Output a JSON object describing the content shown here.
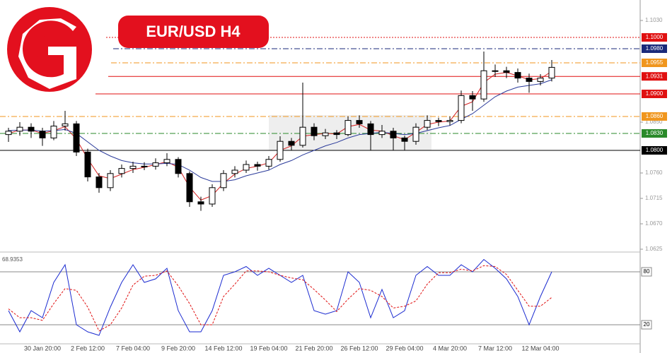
{
  "chart_data": [
    {
      "type": "candlestick",
      "title": "EUR/USD H4",
      "categories": [
        null,
        null,
        null,
        "30 Jan 20:00",
        null,
        null,
        null,
        "2 Feb 12:00",
        null,
        null,
        null,
        "7 Feb 04:00",
        null,
        null,
        null,
        "9 Feb 20:00",
        null,
        null,
        null,
        "14 Feb 12:00",
        null,
        null,
        null,
        "19 Feb 04:00",
        null,
        null,
        null,
        "21 Feb 20:00",
        null,
        null,
        null,
        "26 Feb 12:00",
        null,
        null,
        null,
        "29 Feb 04:00",
        null,
        null,
        null,
        "4 Mar 20:00",
        null,
        null,
        null,
        "7 Mar 12:00",
        null,
        null,
        null,
        "12 Mar 04:00",
        null
      ],
      "open": [
        1.0828,
        1.0834,
        1.0841,
        1.0834,
        1.0822,
        1.0843,
        1.0847,
        1.0797,
        1.0753,
        1.0734,
        1.0759,
        1.0768,
        1.0772,
        1.0772,
        1.0778,
        1.0784,
        1.0759,
        1.0709,
        1.0705,
        1.0734,
        1.0759,
        1.0765,
        1.0775,
        1.0772,
        1.0784,
        1.0816,
        1.0809,
        1.0841,
        1.0826,
        1.0831,
        1.0828,
        1.0853,
        1.0847,
        1.0828,
        1.0834,
        1.0822,
        1.0816,
        1.0841,
        1.0853,
        1.0851,
        1.0853,
        1.0897,
        1.0891,
        1.0941,
        1.0941,
        1.0938,
        1.0928,
        1.0922,
        1.0928
      ],
      "high": [
        1.084,
        1.085,
        1.0848,
        1.084,
        1.0852,
        1.087,
        1.0852,
        1.0803,
        1.076,
        1.0765,
        1.0775,
        1.078,
        1.0779,
        1.0786,
        1.0795,
        1.0788,
        1.0763,
        1.0718,
        1.074,
        1.0765,
        1.0772,
        1.0782,
        1.078,
        1.079,
        1.0825,
        1.0822,
        1.092,
        1.0848,
        1.0838,
        1.0836,
        1.086,
        1.0862,
        1.0852,
        1.0845,
        1.084,
        1.0826,
        1.0848,
        1.0862,
        1.0858,
        1.086,
        1.0906,
        1.0905,
        1.0975,
        1.0952,
        1.0948,
        1.0945,
        1.0936,
        1.0935,
        1.096
      ],
      "low": [
        1.0815,
        1.0826,
        1.0822,
        1.0808,
        1.0818,
        1.0835,
        1.079,
        1.0745,
        1.0725,
        1.0728,
        1.0752,
        1.076,
        1.0765,
        1.0766,
        1.0772,
        1.0752,
        1.07,
        1.0693,
        1.07,
        1.0728,
        1.0752,
        1.076,
        1.0764,
        1.0766,
        1.078,
        1.08,
        1.0805,
        1.0818,
        1.082,
        1.082,
        1.0825,
        1.084,
        1.08,
        1.0822,
        1.08,
        1.08,
        1.081,
        1.0836,
        1.0843,
        1.0844,
        1.0848,
        1.087,
        1.0886,
        1.093,
        1.0928,
        1.092,
        1.0902,
        1.0915,
        1.0922
      ],
      "close": [
        1.0834,
        1.0841,
        1.0834,
        1.0822,
        1.0843,
        1.0847,
        1.0797,
        1.0753,
        1.0734,
        1.0759,
        1.0768,
        1.0772,
        1.0772,
        1.0778,
        1.0784,
        1.0759,
        1.0709,
        1.0705,
        1.0734,
        1.0759,
        1.0765,
        1.0775,
        1.0772,
        1.0784,
        1.0816,
        1.0809,
        1.0841,
        1.0826,
        1.0831,
        1.0828,
        1.0853,
        1.0847,
        1.0828,
        1.0834,
        1.0822,
        1.0816,
        1.0841,
        1.0853,
        1.0851,
        1.0853,
        1.0897,
        1.0891,
        1.0941,
        1.0941,
        1.0938,
        1.0928,
        1.0922,
        1.0928,
        1.0947
      ],
      "up_color": "#ffffff",
      "down_color": "#000000",
      "overlays": [
        {
          "color": "#d42020",
          "values": [
            1.083,
            1.0836,
            1.0836,
            1.083,
            1.0835,
            1.0842,
            1.082,
            1.0785,
            1.0755,
            1.075,
            1.0758,
            1.0766,
            1.077,
            1.0775,
            1.078,
            1.077,
            1.0735,
            1.0712,
            1.072,
            1.0742,
            1.0758,
            1.0768,
            1.0772,
            1.0778,
            1.08,
            1.0808,
            1.0825,
            1.0828,
            1.083,
            1.0829,
            1.0842,
            1.0846,
            1.0836,
            1.0834,
            1.0826,
            1.0819,
            1.0832,
            1.0846,
            1.085,
            1.0852,
            1.0878,
            1.0886,
            1.092,
            1.0935,
            1.0938,
            1.0932,
            1.0925,
            1.0927,
            1.094
          ]
        },
        {
          "color": "#2a3a9a",
          "values": [
            1.0835,
            1.0836,
            1.0836,
            1.0834,
            1.0835,
            1.0837,
            1.083,
            1.0815,
            1.08,
            1.079,
            1.0782,
            1.0778,
            1.0776,
            1.0776,
            1.0777,
            1.0775,
            1.0765,
            1.0752,
            1.0745,
            1.0745,
            1.0748,
            1.0755,
            1.076,
            1.0765,
            1.0775,
            1.0782,
            1.0792,
            1.08,
            1.0808,
            1.0814,
            1.0822,
            1.0828,
            1.083,
            1.0832,
            1.083,
            1.0828,
            1.083,
            1.0835,
            1.084,
            1.0844,
            1.0855,
            1.0865,
            1.088,
            1.0895,
            1.0905,
            1.0912,
            1.0915,
            1.0918,
            1.0925
          ]
        }
      ],
      "levels": [
        {
          "value": 1.1,
          "label": "1.1000",
          "color": "#e01010",
          "style": "dotted"
        },
        {
          "value": 1.098,
          "label": "1.0980",
          "color": "#1a2a7a",
          "style": "dashdot"
        },
        {
          "value": 1.0955,
          "label": "1.0955",
          "color": "#f0961e",
          "style": "dashdot"
        },
        {
          "value": 1.0931,
          "label": "1.0931",
          "color": "#e01010",
          "style": "solid"
        },
        {
          "value": 1.09,
          "label": "1.0900",
          "color": "#e01010",
          "style": "solid"
        },
        {
          "value": 1.086,
          "label": "1.0860",
          "color": "#f0961e",
          "style": "dashdot"
        },
        {
          "value": 1.083,
          "label": "1.0830",
          "color": "#2a8a2a",
          "style": "dashdot"
        },
        {
          "value": 1.08,
          "label": "1.0800",
          "color": "#000000",
          "style": "solid"
        }
      ],
      "ylim": [
        1.062,
        1.106
      ],
      "yticks": [
        {
          "value": 1.103,
          "label": "1.1030"
        },
        {
          "value": 1.085,
          "label": "1.0850"
        },
        {
          "value": 1.076,
          "label": "1.0760"
        },
        1.0715,
        {
          "value": 1.067,
          "label": "1.0670"
        },
        1.0625
      ]
    },
    {
      "type": "line",
      "current_value": 68.9353,
      "series": [
        {
          "color": "#1a2ad0",
          "style": "solid",
          "values": [
            36,
            12,
            36,
            28,
            68,
            88,
            20,
            12,
            8,
            40,
            68,
            88,
            68,
            72,
            84,
            36,
            12,
            12,
            36,
            76,
            80,
            86,
            76,
            84,
            76,
            68,
            76,
            36,
            32,
            36,
            80,
            68,
            28,
            60,
            28,
            36,
            76,
            86,
            76,
            76,
            88,
            80,
            94,
            84,
            72,
            52,
            20,
            52,
            80
          ]
        },
        {
          "color": "#e01010",
          "style": "dashed",
          "values": [
            38,
            28,
            28,
            25,
            44,
            61,
            59,
            40,
            13,
            20,
            39,
            65,
            75,
            76,
            81,
            64,
            44,
            20,
            20,
            52,
            66,
            81,
            81,
            80,
            76,
            73,
            71,
            60,
            48,
            35,
            49,
            61,
            59,
            52,
            39,
            41,
            47,
            66,
            79,
            79,
            83,
            81,
            87,
            86,
            77,
            59,
            41,
            41,
            51
          ]
        }
      ],
      "ylim": [
        0,
        100
      ],
      "yticks": [
        20,
        80
      ]
    }
  ]
}
